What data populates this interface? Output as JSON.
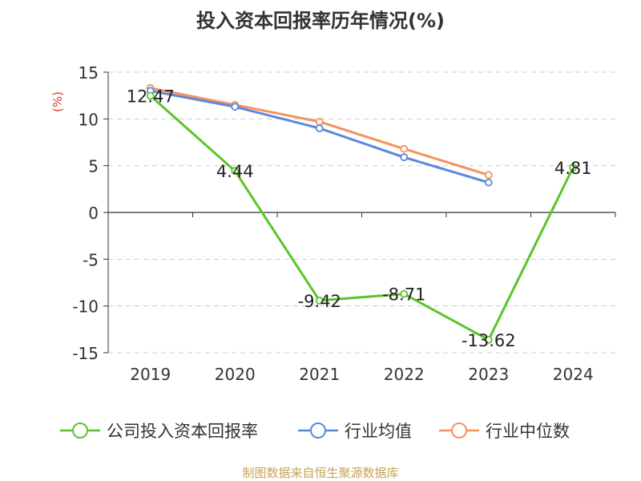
{
  "chart_data": {
    "type": "line",
    "title": "投入资本回报率历年情况(%)",
    "ylabel": "(%)",
    "categories": [
      "2019",
      "2020",
      "2021",
      "2022",
      "2023",
      "2024"
    ],
    "ylim": [
      -15,
      15
    ],
    "yticks": [
      15,
      10,
      5,
      0,
      -5,
      -10,
      -15
    ],
    "grid": true,
    "legend_position": "bottom",
    "series": [
      {
        "name": "公司投入资本回报率",
        "color": "#5bc42a",
        "values": [
          12.47,
          4.44,
          -9.42,
          -8.71,
          -13.62,
          4.81
        ],
        "labels": [
          "12.47",
          "4.44",
          "-9.42",
          "-8.71",
          "-13.62",
          "4.81"
        ]
      },
      {
        "name": "行业均值",
        "color": "#5b87dc",
        "values": [
          13.0,
          11.3,
          9.0,
          5.9,
          3.2,
          null
        ]
      },
      {
        "name": "行业中位数",
        "color": "#f5925e",
        "values": [
          13.3,
          11.5,
          9.7,
          6.8,
          4.0,
          null
        ]
      }
    ]
  },
  "source": "制图数据来自恒生聚源数据库"
}
